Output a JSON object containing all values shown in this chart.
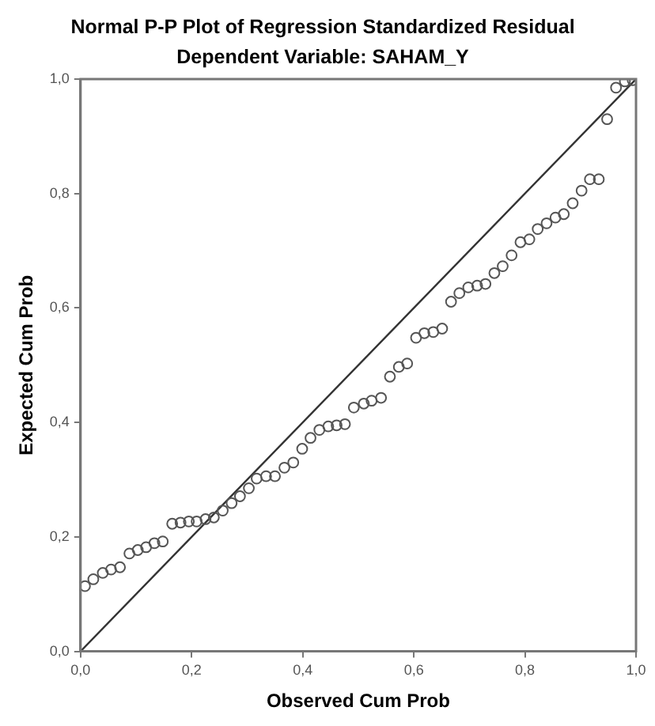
{
  "chart_data": {
    "type": "scatter",
    "title": "Normal P-P Plot of Regression Standardized Residual",
    "subtitle": "Dependent Variable: SAHAM_Y",
    "xlabel": "Observed Cum Prob",
    "ylabel": "Expected Cum Prob",
    "xlim": [
      0,
      1
    ],
    "ylim": [
      0,
      1
    ],
    "xticks": [
      {
        "value": 0,
        "label": "0,0"
      },
      {
        "value": 0.2,
        "label": "0,2"
      },
      {
        "value": 0.4,
        "label": "0,4"
      },
      {
        "value": 0.6,
        "label": "0,6"
      },
      {
        "value": 0.8,
        "label": "0,8"
      },
      {
        "value": 1,
        "label": "1,0"
      }
    ],
    "yticks": [
      {
        "value": 0,
        "label": "0,0"
      },
      {
        "value": 0.2,
        "label": "0,2"
      },
      {
        "value": 0.4,
        "label": "0,4"
      },
      {
        "value": 0.6,
        "label": "0,6"
      },
      {
        "value": 0.8,
        "label": "0,8"
      },
      {
        "value": 1,
        "label": "1,0"
      }
    ],
    "grid": false,
    "series": [
      {
        "marker": "circle",
        "color": "#555555",
        "x": [
          0.008,
          0.023,
          0.04,
          0.055,
          0.071,
          0.088,
          0.103,
          0.118,
          0.133,
          0.148,
          0.165,
          0.18,
          0.195,
          0.209,
          0.225,
          0.24,
          0.256,
          0.272,
          0.287,
          0.303,
          0.317,
          0.334,
          0.35,
          0.367,
          0.383,
          0.399,
          0.414,
          0.43,
          0.446,
          0.461,
          0.476,
          0.492,
          0.51,
          0.524,
          0.541,
          0.557,
          0.573,
          0.588,
          0.604,
          0.619,
          0.635,
          0.651,
          0.667,
          0.682,
          0.698,
          0.714,
          0.729,
          0.745,
          0.76,
          0.776,
          0.792,
          0.808,
          0.823,
          0.839,
          0.855,
          0.87,
          0.886,
          0.902,
          0.917,
          0.933,
          0.948,
          0.964,
          0.98,
          0.994
        ],
        "values": [
          0.114,
          0.126,
          0.137,
          0.143,
          0.147,
          0.171,
          0.177,
          0.182,
          0.189,
          0.192,
          0.223,
          0.225,
          0.227,
          0.227,
          0.231,
          0.234,
          0.246,
          0.259,
          0.271,
          0.285,
          0.302,
          0.306,
          0.306,
          0.321,
          0.33,
          0.354,
          0.373,
          0.387,
          0.393,
          0.395,
          0.397,
          0.426,
          0.433,
          0.438,
          0.443,
          0.48,
          0.497,
          0.503,
          0.548,
          0.556,
          0.558,
          0.564,
          0.611,
          0.626,
          0.636,
          0.639,
          0.642,
          0.661,
          0.673,
          0.692,
          0.715,
          0.72,
          0.738,
          0.748,
          0.758,
          0.764,
          0.783,
          0.805,
          0.825,
          0.825,
          0.93,
          0.985,
          0.996,
          0.998
        ]
      },
      {
        "type": "line",
        "marker": "none",
        "color": "#333333",
        "x": [
          0,
          1
        ],
        "values": [
          0,
          1
        ]
      }
    ]
  }
}
